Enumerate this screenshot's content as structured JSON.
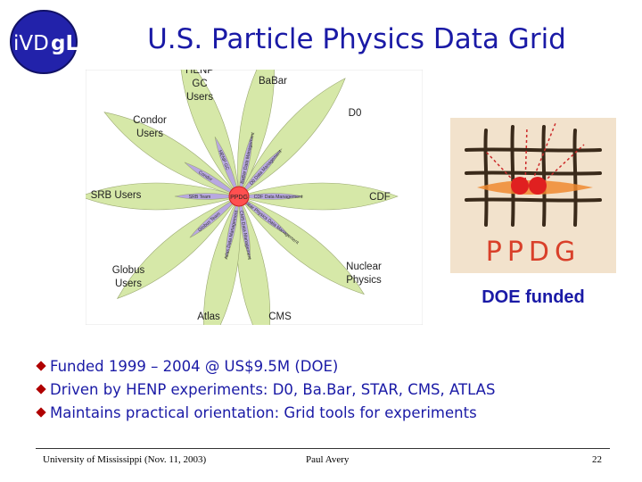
{
  "logo": {
    "text_left": "iVD",
    "text_right": "gL"
  },
  "title": "U.S. Particle Physics Data Grid",
  "diagram": {
    "center": "PPDG",
    "outer": [
      {
        "label": "HENP GC Users"
      },
      {
        "label": "BaBar"
      },
      {
        "label": "D0"
      },
      {
        "label": "CDF"
      },
      {
        "label": "Nuclear Physics"
      },
      {
        "label": "CMS"
      },
      {
        "label": "Atlas"
      },
      {
        "label": "Globus Users"
      },
      {
        "label": "SRB Users"
      },
      {
        "label": "Condor Users"
      }
    ],
    "spokes": [
      {
        "label": "HENP GC"
      },
      {
        "label": "BaBar Data Management"
      },
      {
        "label": "D0 Data Management"
      },
      {
        "label": "CDF Data Management"
      },
      {
        "label": "Nuclear Physics Data Management"
      },
      {
        "label": "CMS Data Management"
      },
      {
        "label": "Atlas Data Management"
      },
      {
        "label": "Globus Team"
      },
      {
        "label": "SRB Team"
      },
      {
        "label": "Condor"
      }
    ]
  },
  "ppdg_logo": {
    "text": "PPDG"
  },
  "doe_label": "DOE funded",
  "bullets": [
    "Funded 1999 – 2004 @ US$9.5M (DOE)",
    "Driven by HENP experiments: D0, Ba.Bar, STAR, CMS, ATLAS",
    "Maintains practical orientation: Grid tools for experiments"
  ],
  "footer": {
    "left": "University of Mississippi (Nov. 11, 2003)",
    "center": "Paul Avery",
    "page": "22"
  },
  "colors": {
    "title": "#1a1aa6",
    "bullet": "#b00000",
    "petal_outer": "#d6e8a8",
    "petal_spoke": "#b8a8e0",
    "center": "#ff5050"
  }
}
